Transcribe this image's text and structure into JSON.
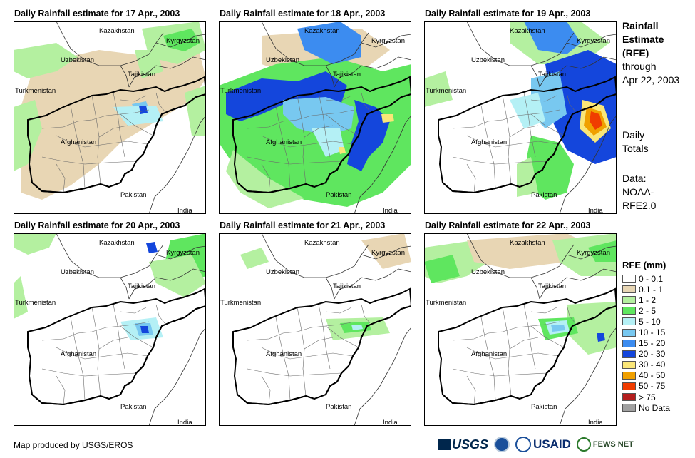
{
  "panels": [
    {
      "title": "Daily Rainfall estimate for 17 Apr., 2003",
      "day": "17"
    },
    {
      "title": "Daily Rainfall estimate for 18 Apr., 2003",
      "day": "18"
    },
    {
      "title": "Daily Rainfall estimate for 19 Apr., 2003",
      "day": "19"
    },
    {
      "title": "Daily Rainfall estimate for 20 Apr., 2003",
      "day": "20"
    },
    {
      "title": "Daily Rainfall estimate for 21 Apr., 2003",
      "day": "21"
    },
    {
      "title": "Daily Rainfall estimate for 22 Apr., 2003",
      "day": "22"
    }
  ],
  "map_labels": {
    "kazakhstan": "Kazakhstan",
    "kyrgyzstan": "Kyrgyzstan",
    "uzbekistan": "Uzbekistan",
    "tajikistan": "Tajikistan",
    "turkmenistan": "Turkmenistan",
    "afghanistan": "Afghanistan",
    "pakistan": "Pakistan",
    "india": "India"
  },
  "side": {
    "title_lines": [
      "Rainfall",
      "Estimate",
      "(RFE)"
    ],
    "through_lines": [
      "through",
      "Apr 22, 2003"
    ],
    "totals_lines": [
      "Daily",
      "Totals"
    ],
    "data_lines": [
      "Data:",
      "NOAA-",
      "RFE2.0"
    ]
  },
  "legend": {
    "title": "RFE (mm)",
    "items": [
      {
        "label": "0 - 0.1",
        "color": "#ffffff"
      },
      {
        "label": "0.1 - 1",
        "color": "#e8d6b4"
      },
      {
        "label": "1 - 2",
        "color": "#b4f0a0"
      },
      {
        "label": "2 - 5",
        "color": "#5fe65f"
      },
      {
        "label": "5 - 10",
        "color": "#b4f0f5"
      },
      {
        "label": "10 - 15",
        "color": "#78c8f0"
      },
      {
        "label": "15 - 20",
        "color": "#3c8cf0"
      },
      {
        "label": "20 - 30",
        "color": "#1446dc"
      },
      {
        "label": "30 - 40",
        "color": "#fae678"
      },
      {
        "label": "40 - 50",
        "color": "#f0a000"
      },
      {
        "label": "50 - 75",
        "color": "#f03c00"
      },
      {
        "label": "> 75",
        "color": "#b41e1e"
      },
      {
        "label": "No Data",
        "color": "#a0a0a0"
      }
    ]
  },
  "credit": "Map produced by USGS/EROS",
  "logos": {
    "usgs": "USGS",
    "usaid": "USAID",
    "fews": "FEWS NET"
  }
}
